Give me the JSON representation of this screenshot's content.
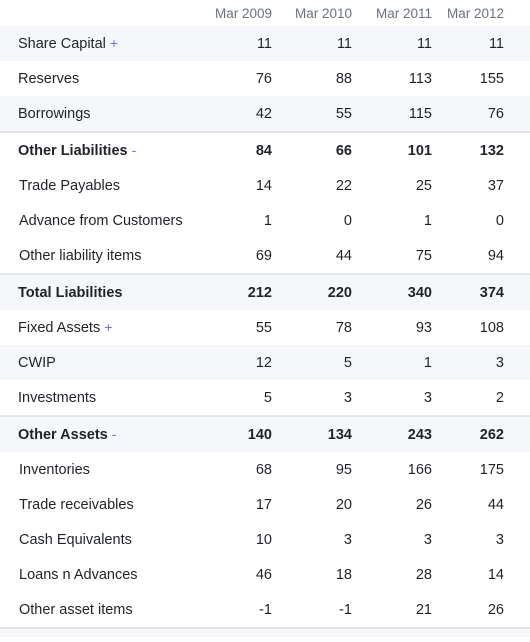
{
  "years": [
    "Mar 2009",
    "Mar 2010",
    "Mar 2011",
    "Mar 2012"
  ],
  "rows": [
    {
      "label": "Share Capital",
      "toggle": "+",
      "values": [
        "11",
        "11",
        "11",
        "11"
      ]
    },
    {
      "label": "Reserves",
      "toggle": "",
      "values": [
        "76",
        "88",
        "113",
        "155"
      ]
    },
    {
      "label": "Borrowings",
      "toggle": "",
      "values": [
        "42",
        "55",
        "115",
        "76"
      ]
    },
    {
      "label": "Other Liabilities",
      "toggle": "-",
      "values": [
        "84",
        "66",
        "101",
        "132"
      ]
    },
    {
      "label": "Trade Payables",
      "toggle": "",
      "values": [
        "14",
        "22",
        "25",
        "37"
      ]
    },
    {
      "label": "Advance from Customers",
      "toggle": "",
      "values": [
        "1",
        "0",
        "1",
        "0"
      ]
    },
    {
      "label": "Other liability items",
      "toggle": "",
      "values": [
        "69",
        "44",
        "75",
        "94"
      ]
    },
    {
      "label": "Total Liabilities",
      "toggle": "",
      "values": [
        "212",
        "220",
        "340",
        "374"
      ]
    },
    {
      "label": "Fixed Assets",
      "toggle": "+",
      "values": [
        "55",
        "78",
        "93",
        "108"
      ]
    },
    {
      "label": "CWIP",
      "toggle": "",
      "values": [
        "12",
        "5",
        "1",
        "3"
      ]
    },
    {
      "label": "Investments",
      "toggle": "",
      "values": [
        "5",
        "3",
        "3",
        "2"
      ]
    },
    {
      "label": "Other Assets",
      "toggle": "-",
      "values": [
        "140",
        "134",
        "243",
        "262"
      ]
    },
    {
      "label": "Inventories",
      "toggle": "",
      "values": [
        "68",
        "95",
        "166",
        "175"
      ]
    },
    {
      "label": "Trade receivables",
      "toggle": "",
      "values": [
        "17",
        "20",
        "26",
        "44"
      ]
    },
    {
      "label": "Cash Equivalents",
      "toggle": "",
      "values": [
        "10",
        "3",
        "3",
        "3"
      ]
    },
    {
      "label": "Loans n Advances",
      "toggle": "",
      "values": [
        "46",
        "18",
        "28",
        "14"
      ]
    },
    {
      "label": "Other asset items",
      "toggle": "",
      "values": [
        "-1",
        "-1",
        "21",
        "26"
      ]
    }
  ]
}
